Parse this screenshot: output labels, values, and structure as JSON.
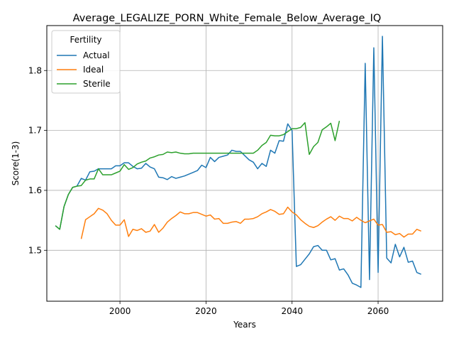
{
  "chart_data": {
    "type": "line",
    "title": "Average_LEGALIZE_PORN_White_Female_Below_Average_IQ",
    "xlabel": "Years",
    "ylabel": "Score(1-3)",
    "xlim": [
      1983,
      2075
    ],
    "ylim": [
      1.415,
      1.875
    ],
    "xticks": [
      2000,
      2020,
      2040,
      2060
    ],
    "yticks": [
      1.5,
      1.6,
      1.7,
      1.8
    ],
    "grid": true,
    "legend": {
      "title": "Fertility",
      "position": "top-left"
    },
    "series": [
      {
        "name": "Actual",
        "color": "#1f77b4",
        "points": [
          [
            1985,
            1.541
          ],
          [
            1986,
            1.535
          ],
          [
            1987,
            1.573
          ],
          [
            1988,
            1.593
          ],
          [
            1989,
            1.605
          ],
          [
            1990,
            1.607
          ],
          [
            1991,
            1.62
          ],
          [
            1992,
            1.617
          ],
          [
            1993,
            1.631
          ],
          [
            1994,
            1.632
          ],
          [
            1995,
            1.636
          ],
          [
            1996,
            1.636
          ],
          [
            1997,
            1.636
          ],
          [
            1998,
            1.636
          ],
          [
            1999,
            1.641
          ],
          [
            2000,
            1.641
          ],
          [
            2001,
            1.646
          ],
          [
            2002,
            1.646
          ],
          [
            2003,
            1.64
          ],
          [
            2004,
            1.636
          ],
          [
            2005,
            1.637
          ],
          [
            2006,
            1.645
          ],
          [
            2007,
            1.639
          ],
          [
            2008,
            1.636
          ],
          [
            2009,
            1.622
          ],
          [
            2010,
            1.621
          ],
          [
            2011,
            1.618
          ],
          [
            2012,
            1.623
          ],
          [
            2013,
            1.62
          ],
          [
            2014,
            1.622
          ],
          [
            2015,
            1.624
          ],
          [
            2016,
            1.627
          ],
          [
            2017,
            1.63
          ],
          [
            2018,
            1.633
          ],
          [
            2019,
            1.642
          ],
          [
            2020,
            1.638
          ],
          [
            2021,
            1.655
          ],
          [
            2022,
            1.648
          ],
          [
            2023,
            1.655
          ],
          [
            2024,
            1.657
          ],
          [
            2025,
            1.659
          ],
          [
            2026,
            1.667
          ],
          [
            2027,
            1.665
          ],
          [
            2028,
            1.665
          ],
          [
            2029,
            1.658
          ],
          [
            2030,
            1.651
          ],
          [
            2031,
            1.647
          ],
          [
            2032,
            1.636
          ],
          [
            2033,
            1.645
          ],
          [
            2034,
            1.64
          ],
          [
            2035,
            1.667
          ],
          [
            2036,
            1.662
          ],
          [
            2037,
            1.683
          ],
          [
            2038,
            1.682
          ],
          [
            2039,
            1.711
          ],
          [
            2040,
            1.7
          ],
          [
            2041,
            1.473
          ],
          [
            2042,
            1.476
          ],
          [
            2043,
            1.485
          ],
          [
            2044,
            1.494
          ],
          [
            2045,
            1.506
          ],
          [
            2046,
            1.508
          ],
          [
            2047,
            1.5
          ],
          [
            2048,
            1.5
          ],
          [
            2049,
            1.484
          ],
          [
            2050,
            1.486
          ],
          [
            2051,
            1.467
          ],
          [
            2052,
            1.469
          ],
          [
            2053,
            1.459
          ],
          [
            2054,
            1.445
          ],
          [
            2055,
            1.442
          ],
          [
            2056,
            1.438
          ],
          [
            2057,
            1.812
          ],
          [
            2058,
            1.451
          ],
          [
            2059,
            1.838
          ],
          [
            2060,
            1.463
          ],
          [
            2061,
            1.857
          ],
          [
            2062,
            1.487
          ],
          [
            2063,
            1.479
          ],
          [
            2064,
            1.51
          ],
          [
            2065,
            1.489
          ],
          [
            2066,
            1.505
          ],
          [
            2067,
            1.48
          ],
          [
            2068,
            1.482
          ],
          [
            2069,
            1.463
          ],
          [
            2070,
            1.46
          ]
        ]
      },
      {
        "name": "Ideal",
        "color": "#ff7f0e",
        "points": [
          [
            1991,
            1.519
          ],
          [
            1992,
            1.551
          ],
          [
            1993,
            1.556
          ],
          [
            1994,
            1.561
          ],
          [
            1995,
            1.57
          ],
          [
            1996,
            1.567
          ],
          [
            1997,
            1.561
          ],
          [
            1998,
            1.55
          ],
          [
            1999,
            1.542
          ],
          [
            2000,
            1.542
          ],
          [
            2001,
            1.551
          ],
          [
            2002,
            1.523
          ],
          [
            2003,
            1.535
          ],
          [
            2004,
            1.533
          ],
          [
            2005,
            1.536
          ],
          [
            2006,
            1.53
          ],
          [
            2007,
            1.532
          ],
          [
            2008,
            1.543
          ],
          [
            2009,
            1.53
          ],
          [
            2010,
            1.537
          ],
          [
            2011,
            1.547
          ],
          [
            2012,
            1.553
          ],
          [
            2013,
            1.558
          ],
          [
            2014,
            1.564
          ],
          [
            2015,
            1.561
          ],
          [
            2016,
            1.561
          ],
          [
            2017,
            1.563
          ],
          [
            2018,
            1.563
          ],
          [
            2019,
            1.56
          ],
          [
            2020,
            1.557
          ],
          [
            2021,
            1.559
          ],
          [
            2022,
            1.552
          ],
          [
            2023,
            1.553
          ],
          [
            2024,
            1.545
          ],
          [
            2025,
            1.545
          ],
          [
            2026,
            1.547
          ],
          [
            2027,
            1.548
          ],
          [
            2028,
            1.545
          ],
          [
            2029,
            1.552
          ],
          [
            2030,
            1.552
          ],
          [
            2031,
            1.553
          ],
          [
            2032,
            1.556
          ],
          [
            2033,
            1.561
          ],
          [
            2034,
            1.564
          ],
          [
            2035,
            1.568
          ],
          [
            2036,
            1.565
          ],
          [
            2037,
            1.56
          ],
          [
            2038,
            1.561
          ],
          [
            2039,
            1.572
          ],
          [
            2040,
            1.564
          ],
          [
            2041,
            1.559
          ],
          [
            2042,
            1.551
          ],
          [
            2043,
            1.545
          ],
          [
            2044,
            1.54
          ],
          [
            2045,
            1.538
          ],
          [
            2046,
            1.541
          ],
          [
            2047,
            1.547
          ],
          [
            2048,
            1.552
          ],
          [
            2049,
            1.556
          ],
          [
            2050,
            1.55
          ],
          [
            2051,
            1.557
          ],
          [
            2052,
            1.553
          ],
          [
            2053,
            1.553
          ],
          [
            2054,
            1.549
          ],
          [
            2055,
            1.555
          ],
          [
            2056,
            1.55
          ],
          [
            2057,
            1.546
          ],
          [
            2058,
            1.549
          ],
          [
            2059,
            1.552
          ],
          [
            2060,
            1.542
          ],
          [
            2061,
            1.543
          ],
          [
            2062,
            1.53
          ],
          [
            2063,
            1.531
          ],
          [
            2064,
            1.526
          ],
          [
            2065,
            1.528
          ],
          [
            2066,
            1.522
          ],
          [
            2067,
            1.527
          ],
          [
            2068,
            1.527
          ],
          [
            2069,
            1.535
          ],
          [
            2070,
            1.532
          ]
        ]
      },
      {
        "name": "Sterile",
        "color": "#2ca02c",
        "points": [
          [
            1985,
            1.541
          ],
          [
            1986,
            1.535
          ],
          [
            1987,
            1.573
          ],
          [
            1988,
            1.593
          ],
          [
            1989,
            1.605
          ],
          [
            1990,
            1.607
          ],
          [
            1991,
            1.608
          ],
          [
            1992,
            1.617
          ],
          [
            1993,
            1.619
          ],
          [
            1994,
            1.619
          ],
          [
            1995,
            1.636
          ],
          [
            1996,
            1.626
          ],
          [
            1997,
            1.626
          ],
          [
            1998,
            1.626
          ],
          [
            1999,
            1.629
          ],
          [
            2000,
            1.632
          ],
          [
            2001,
            1.643
          ],
          [
            2002,
            1.635
          ],
          [
            2003,
            1.638
          ],
          [
            2004,
            1.644
          ],
          [
            2005,
            1.647
          ],
          [
            2006,
            1.649
          ],
          [
            2007,
            1.654
          ],
          [
            2008,
            1.656
          ],
          [
            2009,
            1.659
          ],
          [
            2010,
            1.66
          ],
          [
            2011,
            1.664
          ],
          [
            2012,
            1.663
          ],
          [
            2013,
            1.664
          ],
          [
            2014,
            1.662
          ],
          [
            2015,
            1.661
          ],
          [
            2016,
            1.661
          ],
          [
            2017,
            1.662
          ],
          [
            2018,
            1.662
          ],
          [
            2019,
            1.662
          ],
          [
            2020,
            1.662
          ],
          [
            2021,
            1.662
          ],
          [
            2022,
            1.662
          ],
          [
            2023,
            1.662
          ],
          [
            2024,
            1.662
          ],
          [
            2025,
            1.662
          ],
          [
            2026,
            1.662
          ],
          [
            2027,
            1.662
          ],
          [
            2028,
            1.662
          ],
          [
            2029,
            1.662
          ],
          [
            2030,
            1.662
          ],
          [
            2031,
            1.662
          ],
          [
            2032,
            1.667
          ],
          [
            2033,
            1.675
          ],
          [
            2034,
            1.68
          ],
          [
            2035,
            1.692
          ],
          [
            2036,
            1.691
          ],
          [
            2037,
            1.691
          ],
          [
            2038,
            1.693
          ],
          [
            2039,
            1.698
          ],
          [
            2040,
            1.703
          ],
          [
            2041,
            1.703
          ],
          [
            2042,
            1.705
          ],
          [
            2043,
            1.713
          ],
          [
            2044,
            1.66
          ],
          [
            2045,
            1.673
          ],
          [
            2046,
            1.68
          ],
          [
            2047,
            1.701
          ],
          [
            2048,
            1.706
          ],
          [
            2049,
            1.712
          ],
          [
            2050,
            1.683
          ],
          [
            2051,
            1.716
          ]
        ]
      }
    ]
  }
}
